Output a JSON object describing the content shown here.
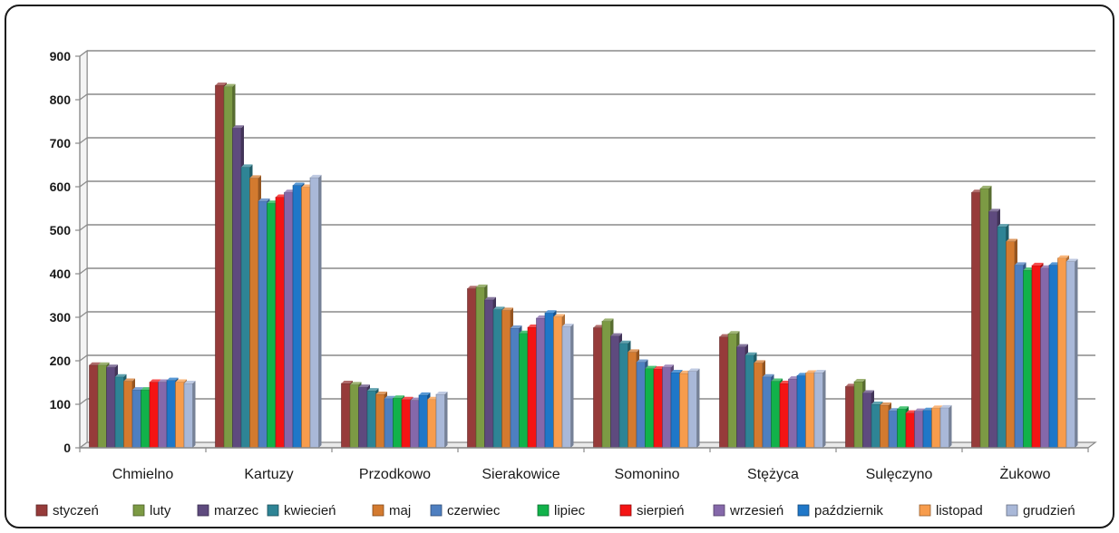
{
  "chart_data": {
    "type": "bar",
    "title": "",
    "xlabel": "",
    "ylabel": "",
    "ylim": [
      0,
      900
    ],
    "yticks": [
      "0",
      "100",
      "200",
      "300",
      "400",
      "500",
      "600",
      "700",
      "800",
      "900"
    ],
    "grid": true,
    "legend_position": "bottom",
    "categories": [
      "Chmielno",
      "Kartuzy",
      "Przodkowo",
      "Sierakowice",
      "Somonino",
      "Stężyca",
      "Sulęczyno",
      "Żukowo"
    ],
    "series": [
      {
        "name": "styczeń",
        "color": "#963B3A",
        "values": [
          190,
          833,
          148,
          366,
          276,
          255,
          141,
          587
        ]
      },
      {
        "name": "luty",
        "color": "#7C9A44",
        "values": [
          190,
          830,
          145,
          369,
          291,
          262,
          152,
          596
        ]
      },
      {
        "name": "marzec",
        "color": "#5E4A7E",
        "values": [
          185,
          735,
          139,
          340,
          257,
          232,
          126,
          543
        ]
      },
      {
        "name": "kwiecień",
        "color": "#2E8495",
        "values": [
          163,
          645,
          131,
          318,
          240,
          213,
          100,
          508
        ]
      },
      {
        "name": "maj",
        "color": "#D37A2F",
        "values": [
          153,
          620,
          123,
          316,
          220,
          195,
          98,
          474
        ]
      },
      {
        "name": "czerwiec",
        "color": "#4E7FC0",
        "values": [
          133,
          567,
          113,
          275,
          197,
          163,
          85,
          420
        ]
      },
      {
        "name": "lipiec",
        "color": "#11B24A",
        "values": [
          133,
          562,
          114,
          263,
          182,
          153,
          89,
          408
        ]
      },
      {
        "name": "sierpień",
        "color": "#F41414",
        "values": [
          151,
          576,
          111,
          277,
          181,
          148,
          80,
          419
        ]
      },
      {
        "name": "wrzesień",
        "color": "#8568AA",
        "values": [
          151,
          587,
          109,
          298,
          185,
          158,
          84,
          413
        ]
      },
      {
        "name": "październik",
        "color": "#1F77C8",
        "values": [
          155,
          603,
          121,
          310,
          173,
          166,
          86,
          420
        ]
      },
      {
        "name": "listopad",
        "color": "#F79C4C",
        "values": [
          151,
          599,
          111,
          301,
          171,
          172,
          91,
          436
        ]
      },
      {
        "name": "grudzień",
        "color": "#A9B8D8",
        "values": [
          148,
          621,
          123,
          279,
          176,
          173,
          92,
          428
        ]
      }
    ]
  }
}
